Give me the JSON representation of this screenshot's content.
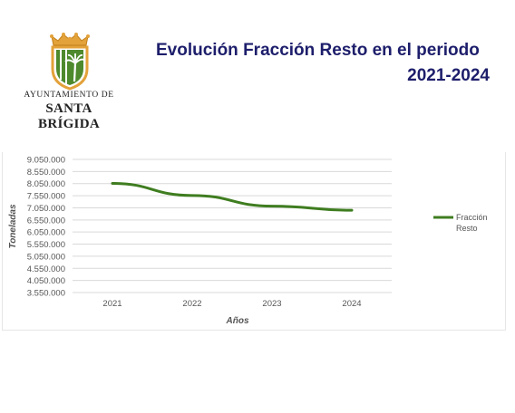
{
  "header": {
    "title_line1": "Evolución Fracción Resto en el periodo",
    "title_line2": "2021-2024"
  },
  "logo": {
    "line1": "AYUNTAMIENTO DE",
    "line2": "SANTA BRÍGIDA",
    "icon": "shield-crown-palm-icon"
  },
  "colors": {
    "title": "#1d1e6b",
    "series": "#3f7d20",
    "grid": "#d9d9d9",
    "text": "#555555"
  },
  "chart_data": {
    "type": "line",
    "xlabel": "Años",
    "ylabel": "Toneladas",
    "categories": [
      "2021",
      "2022",
      "2023",
      "2024"
    ],
    "yticks": [
      "9.050.000",
      "8.550.000",
      "8.050.000",
      "7.550.000",
      "7.050.000",
      "6.550.000",
      "6.050.000",
      "5.550.000",
      "5.050.000",
      "4.550.000",
      "4.050.000",
      "3.550.000"
    ],
    "ylim": [
      3550000,
      9050000
    ],
    "grid": true,
    "legend_position": "right",
    "series": [
      {
        "name": "Fracción Resto",
        "values": [
          8060000,
          7560000,
          7120000,
          6950000
        ]
      }
    ]
  }
}
